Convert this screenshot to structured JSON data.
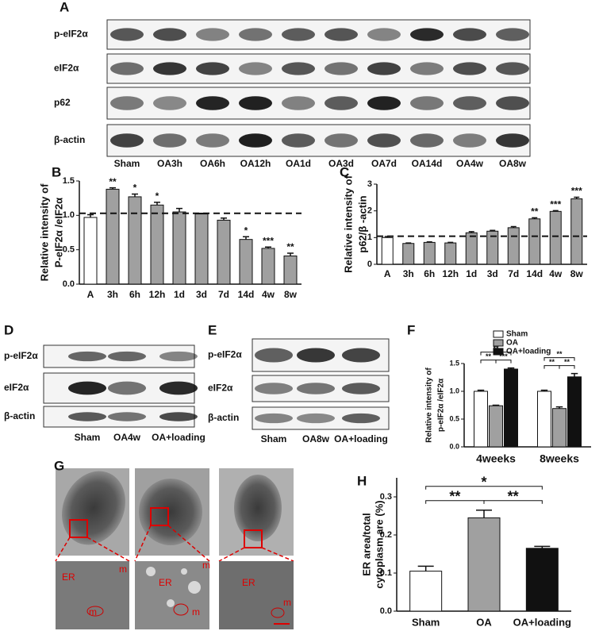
{
  "panel_labels": [
    "A",
    "B",
    "C",
    "D",
    "E",
    "F",
    "G",
    "H"
  ],
  "blots": [
    {
      "rows": [
        "p-eIF2α",
        "eIF2α",
        "p62",
        "β-actin"
      ],
      "columns": [
        "Sham",
        "OA3h",
        "OA6h",
        "OA12h",
        "OA1d",
        "OA3d",
        "OA7d",
        "OA14d",
        "OA4w",
        "OA8w"
      ]
    },
    {
      "rows": [
        "p-eIF2α",
        "eIF2α",
        "β-actin"
      ],
      "columns": [
        "Sham",
        "OA4w",
        "OA+loading"
      ]
    },
    {
      "rows": [
        "p-eIF2α",
        "eIF2α",
        "β-actin"
      ],
      "columns": [
        "Sham",
        "OA8w",
        "OA+loading"
      ]
    }
  ],
  "micrograph_labels": [
    [
      "ER",
      "m",
      "m"
    ],
    [
      "ER",
      "m",
      "m"
    ],
    [
      "ER",
      "m"
    ]
  ],
  "chart_data": [
    {
      "type": "bar",
      "ylabel": [
        "Relative intensity of",
        "P-eIF2α /eIF2α"
      ],
      "categories": [
        "A",
        "3h",
        "6h",
        "12h",
        "1d",
        "3d",
        "7d",
        "14d",
        "4w",
        "8w"
      ],
      "values": [
        0.97,
        1.38,
        1.27,
        1.15,
        1.05,
        1.02,
        0.93,
        0.65,
        0.52,
        0.41
      ],
      "errors": [
        0.04,
        0.02,
        0.04,
        0.04,
        0.05,
        0.01,
        0.03,
        0.04,
        0.02,
        0.04
      ],
      "colors": [
        "#ffffff",
        "#a0a0a0",
        "#a0a0a0",
        "#a0a0a0",
        "#a0a0a0",
        "#a0a0a0",
        "#a0a0a0",
        "#a0a0a0",
        "#a0a0a0",
        "#a0a0a0"
      ],
      "annotations": [
        null,
        "**",
        "*",
        "*",
        null,
        null,
        null,
        "*",
        "***",
        "**"
      ],
      "ylim": [
        0,
        1.5
      ],
      "yticks": [
        {
          "value": 0,
          "label": "0.0"
        },
        0.5,
        {
          "value": 1,
          "label": "1.0"
        },
        1.5
      ],
      "reference_line": 1.03
    },
    {
      "type": "bar",
      "ylabel": [
        "Relative intensity of",
        "p62/β -actin"
      ],
      "categories": [
        "A",
        "3h",
        "6h",
        "12h",
        "1d",
        "3d",
        "7d",
        "14d",
        "4w",
        "8w"
      ],
      "values": [
        1.0,
        0.78,
        0.82,
        0.8,
        1.18,
        1.24,
        1.37,
        1.7,
        1.98,
        2.45
      ],
      "errors": [
        0.04,
        0.02,
        0.02,
        0.02,
        0.04,
        0.03,
        0.04,
        0.04,
        0.03,
        0.06
      ],
      "colors": [
        "#ffffff",
        "#a0a0a0",
        "#a0a0a0",
        "#a0a0a0",
        "#a0a0a0",
        "#a0a0a0",
        "#a0a0a0",
        "#a0a0a0",
        "#a0a0a0",
        "#a0a0a0"
      ],
      "annotations": [
        null,
        null,
        null,
        null,
        null,
        null,
        null,
        "**",
        "***",
        "***"
      ],
      "ylim": [
        0,
        3
      ],
      "yticks": [
        0,
        1,
        2,
        3
      ],
      "reference_line": 1.05
    },
    {
      "type": "grouped_bar",
      "ylabel": [
        "Relative intensity of",
        "p-eIF2α /eIF2α"
      ],
      "categories": [
        "4weeks",
        "8weeks"
      ],
      "series": [
        {
          "name": "Sham",
          "color": "#ffffff",
          "values": [
            1.0,
            1.0
          ],
          "errors": [
            0.02,
            0.02
          ]
        },
        {
          "name": "OA",
          "color": "#a0a0a0",
          "values": [
            0.74,
            0.69
          ],
          "errors": [
            0.01,
            0.03
          ]
        },
        {
          "name": "OA+loading",
          "color": "#111111",
          "values": [
            1.4,
            1.26
          ],
          "errors": [
            0.02,
            0.06
          ]
        }
      ],
      "significance": [
        {
          "category": 0,
          "pair": [
            0,
            1
          ],
          "label": "**"
        },
        {
          "category": 0,
          "pair": [
            1,
            2
          ],
          "label": "***"
        },
        {
          "category": 0,
          "pair": [
            0,
            2
          ],
          "label": "**"
        },
        {
          "category": 1,
          "pair": [
            0,
            1
          ],
          "label": "**"
        },
        {
          "category": 1,
          "pair": [
            1,
            2
          ],
          "label": "**"
        },
        {
          "category": 1,
          "pair": [
            0,
            2
          ],
          "label": "**"
        }
      ],
      "ylim": [
        0,
        1.5
      ],
      "yticks": [
        {
          "value": 0,
          "label": "0.0"
        },
        0.5,
        {
          "value": 1,
          "label": "1.0"
        },
        1.5
      ]
    },
    {
      "type": "bar",
      "ylabel": [
        "ER area/total",
        "cytoplasm are (%)"
      ],
      "categories": [
        "Sham",
        "OA",
        "OA+loading"
      ],
      "values": [
        0.105,
        0.245,
        0.165
      ],
      "errors": [
        0.013,
        0.02,
        0.005
      ],
      "colors": [
        "#ffffff",
        "#a0a0a0",
        "#111111"
      ],
      "significance": [
        {
          "pair": [
            0,
            1
          ],
          "label": "**"
        },
        {
          "pair": [
            1,
            2
          ],
          "label": "**"
        },
        {
          "pair": [
            0,
            2
          ],
          "label": "*"
        }
      ],
      "ylim": [
        0,
        0.35
      ],
      "yticks": [
        {
          "value": 0,
          "label": "0.0"
        },
        0.1,
        0.2,
        0.3
      ]
    }
  ]
}
